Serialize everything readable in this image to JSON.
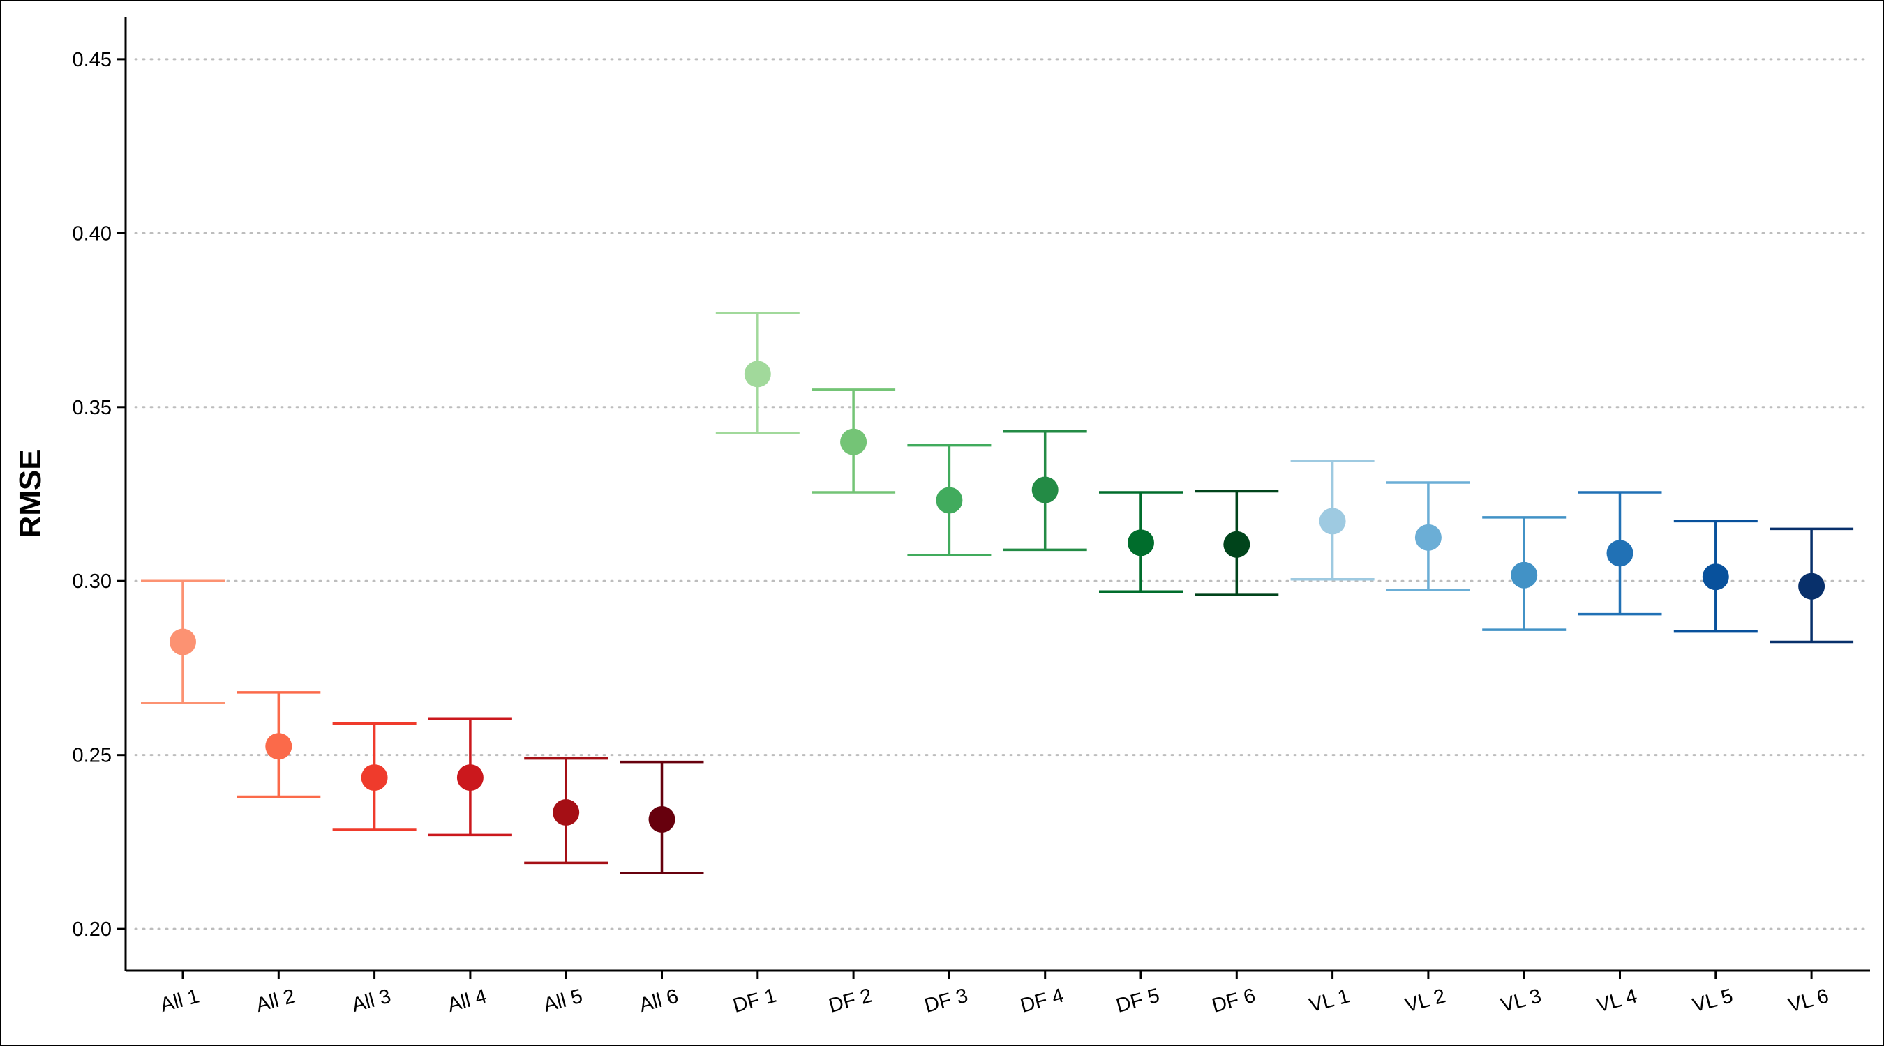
{
  "chart_data": {
    "type": "scatter",
    "subtype": "point-with-error-bars",
    "title": "",
    "xlabel": "",
    "ylabel": "RMSE",
    "ylim": [
      0.188,
      0.462
    ],
    "yticks": [
      0.2,
      0.25,
      0.3,
      0.35,
      0.4,
      0.45
    ],
    "ytick_labels": [
      "0.20",
      "0.25",
      "0.30",
      "0.35",
      "0.40",
      "0.45"
    ],
    "grid": "horizontal dotted",
    "legend": "none",
    "categories": [
      "All 1",
      "All 2",
      "All 3",
      "All 4",
      "All 5",
      "All 6",
      "DF 1",
      "DF 2",
      "DF 3",
      "DF 4",
      "DF 5",
      "DF 6",
      "VL 1",
      "VL 2",
      "VL 3",
      "VL 4",
      "VL 5",
      "VL 6"
    ],
    "values": [
      0.2825,
      0.2525,
      0.2435,
      0.2435,
      0.2335,
      0.2315,
      0.3595,
      0.34,
      0.3232,
      0.3262,
      0.311,
      0.3105,
      0.3172,
      0.3125,
      0.3017,
      0.308,
      0.3012,
      0.2985
    ],
    "lower": [
      0.265,
      0.238,
      0.2285,
      0.227,
      0.219,
      0.216,
      0.3425,
      0.3255,
      0.3075,
      0.309,
      0.297,
      0.296,
      0.3005,
      0.2975,
      0.286,
      0.2905,
      0.2855,
      0.2825
    ],
    "upper": [
      0.3,
      0.268,
      0.259,
      0.2605,
      0.249,
      0.248,
      0.377,
      0.355,
      0.339,
      0.343,
      0.3255,
      0.3258,
      0.3345,
      0.3283,
      0.3183,
      0.3255,
      0.3172,
      0.315
    ],
    "colors": [
      "#fc9272",
      "#fb6a4a",
      "#ef3b2c",
      "#cb181d",
      "#a50f15",
      "#67000d",
      "#a1d99b",
      "#74c476",
      "#41ab5d",
      "#238b45",
      "#006d2c",
      "#00441b",
      "#9ecae1",
      "#6baed6",
      "#4292c6",
      "#2171b5",
      "#08519c",
      "#08306b"
    ]
  }
}
